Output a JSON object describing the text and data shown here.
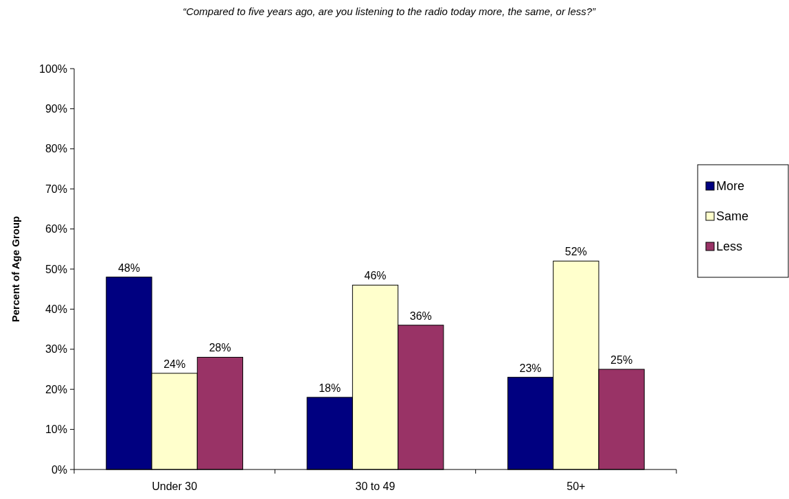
{
  "chart_data": {
    "type": "bar",
    "title": "“Compared to five years ago, are you listening to the radio today more, the same, or less?”",
    "ylabel": "Percent of Age Group",
    "categories": [
      "Under 30",
      "30 to 49",
      "50+"
    ],
    "series": [
      {
        "name": "More",
        "color": "#000080",
        "values": [
          48,
          18,
          23
        ],
        "value_labels": [
          "48%",
          "18%",
          "23%"
        ]
      },
      {
        "name": "Same",
        "color": "#ffffcc",
        "values": [
          24,
          46,
          52
        ],
        "value_labels": [
          "24%",
          "46%",
          "52%"
        ]
      },
      {
        "name": "Less",
        "color": "#993366",
        "values": [
          28,
          36,
          25
        ],
        "value_labels": [
          "28%",
          "36%",
          "25%"
        ]
      }
    ],
    "ylim": [
      0,
      100
    ],
    "yticks": [
      {
        "value": 0,
        "label": "0%"
      },
      {
        "value": 10,
        "label": "10%"
      },
      {
        "value": 20,
        "label": "20%"
      },
      {
        "value": 30,
        "label": "30%"
      },
      {
        "value": 40,
        "label": "40%"
      },
      {
        "value": 50,
        "label": "50%"
      },
      {
        "value": 60,
        "label": "60%"
      },
      {
        "value": 70,
        "label": "70%"
      },
      {
        "value": 80,
        "label": "80%"
      },
      {
        "value": 90,
        "label": "90%"
      },
      {
        "value": 100,
        "label": "100%"
      }
    ],
    "grid": false,
    "legend": "right"
  }
}
